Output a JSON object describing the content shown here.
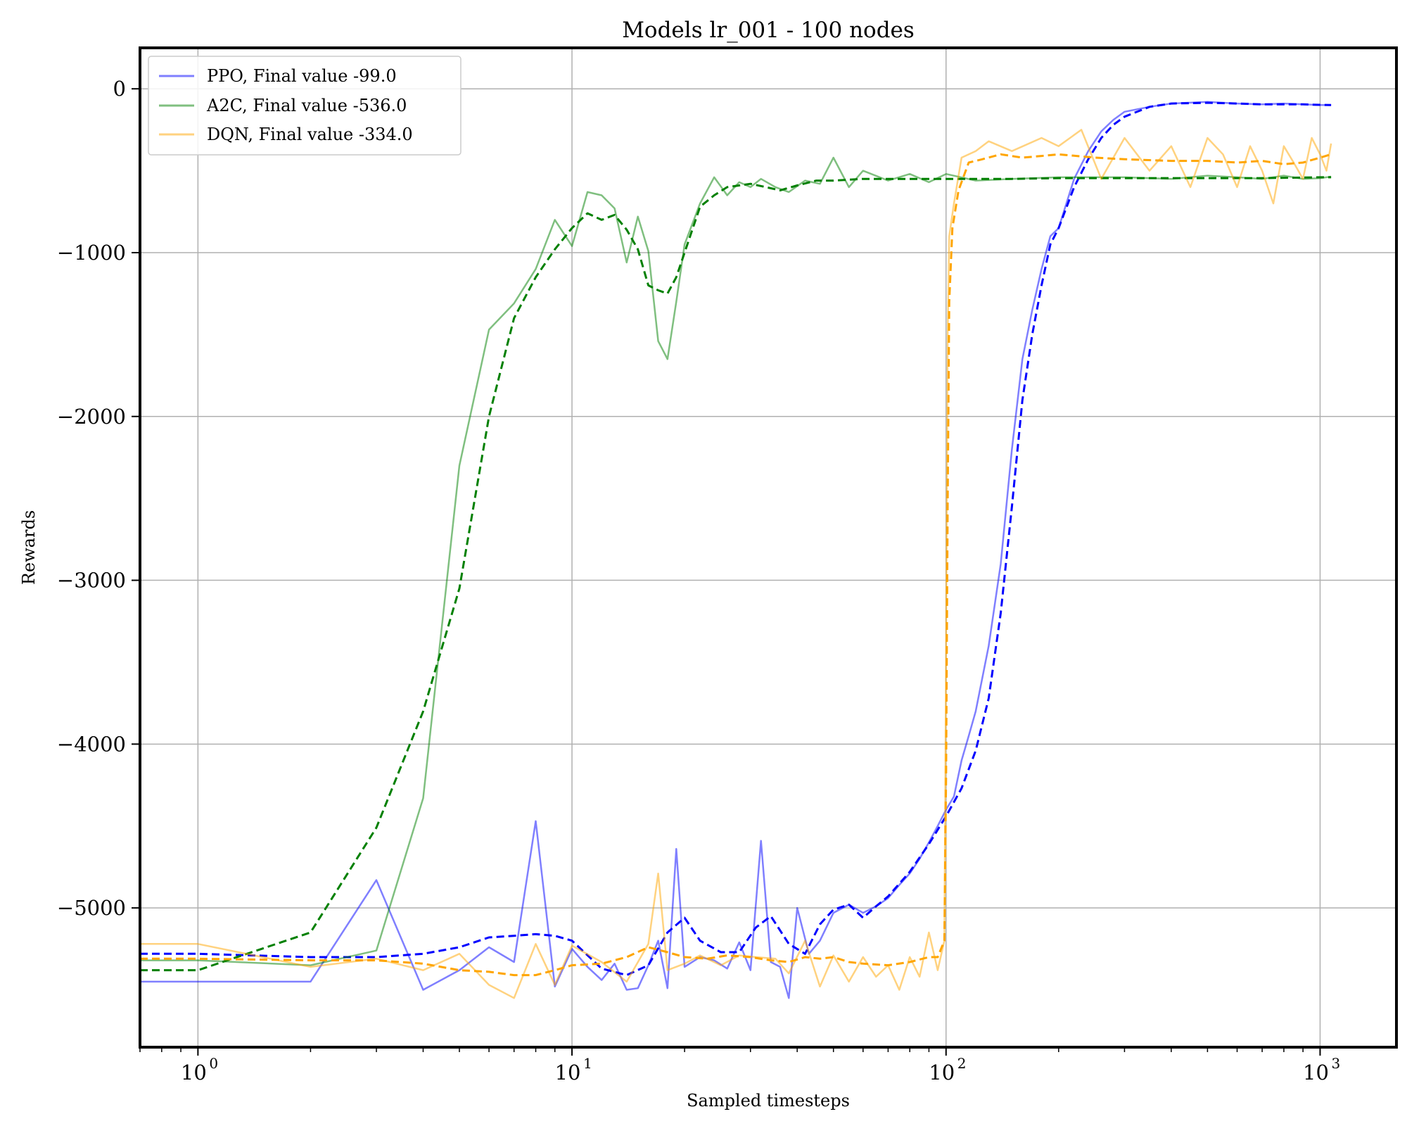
{
  "chart_data": {
    "type": "line",
    "title": "Models lr_001 - 100 nodes",
    "xlabel": "Sampled timesteps",
    "ylabel": "Rewards",
    "xscale": "log",
    "xlim": [
      0.7,
      1600
    ],
    "ylim": [
      -5850,
      250
    ],
    "x_ticks": [
      {
        "value": 1,
        "base": "10",
        "exp": "0"
      },
      {
        "value": 10,
        "base": "10",
        "exp": "1"
      },
      {
        "value": 100,
        "base": "10",
        "exp": "2"
      },
      {
        "value": 1000,
        "base": "10",
        "exp": "3"
      }
    ],
    "y_ticks": [
      {
        "value": 0,
        "label": "0"
      },
      {
        "value": -1000,
        "label": "−1000"
      },
      {
        "value": -2000,
        "label": "−2000"
      },
      {
        "value": -3000,
        "label": "−3000"
      },
      {
        "value": -4000,
        "label": "−4000"
      },
      {
        "value": -5000,
        "label": "−5000"
      }
    ],
    "grid": true,
    "legend_position": "upper-left",
    "series": [
      {
        "name": "PPO, Final value -99.0",
        "color": "#0000ff",
        "x": [
          0,
          1,
          2,
          3,
          4,
          5,
          6,
          7,
          8,
          9,
          10,
          11,
          12,
          13,
          14,
          15,
          16,
          17,
          18,
          19,
          20,
          22,
          24,
          26,
          28,
          30,
          32,
          34,
          36,
          38,
          40,
          43,
          46,
          50,
          55,
          60,
          65,
          70,
          75,
          80,
          85,
          90,
          95,
          100,
          105,
          110,
          115,
          120,
          130,
          140,
          150,
          160,
          170,
          180,
          190,
          200,
          220,
          240,
          260,
          280,
          300,
          350,
          400,
          500,
          600,
          700,
          800,
          900,
          1000,
          1070
        ],
        "values": [
          -5450,
          -5450,
          -5450,
          -4830,
          -5500,
          -5380,
          -5240,
          -5330,
          -4470,
          -5480,
          -5250,
          -5360,
          -5440,
          -5340,
          -5500,
          -5490,
          -5350,
          -5200,
          -5490,
          -4640,
          -5360,
          -5300,
          -5320,
          -5370,
          -5210,
          -5380,
          -4590,
          -5330,
          -5360,
          -5550,
          -5000,
          -5280,
          -5200,
          -5030,
          -4980,
          -5030,
          -4990,
          -4940,
          -4860,
          -4790,
          -4700,
          -4600,
          -4500,
          -4400,
          -4320,
          -4100,
          -3950,
          -3800,
          -3400,
          -2900,
          -2200,
          -1650,
          -1350,
          -1100,
          -900,
          -850,
          -550,
          -380,
          -260,
          -190,
          -140,
          -110,
          -90,
          -80,
          -90,
          -95,
          -90,
          -95,
          -99,
          -99
        ]
      },
      {
        "name": "PPO smoothed",
        "color": "#0000ff",
        "dashed": true,
        "x": [
          0.7,
          1,
          2,
          3,
          4,
          5,
          6,
          7,
          8,
          9,
          10,
          12,
          14,
          16,
          18,
          20,
          22,
          25,
          28,
          31,
          34,
          38,
          42,
          46,
          50,
          55,
          60,
          65,
          70,
          80,
          90,
          100,
          110,
          120,
          130,
          140,
          150,
          160,
          170,
          180,
          190,
          200,
          220,
          240,
          260,
          280,
          300,
          350,
          400,
          500,
          600,
          700,
          800,
          900,
          1000,
          1070
        ],
        "values": [
          -5280,
          -5280,
          -5300,
          -5300,
          -5280,
          -5240,
          -5180,
          -5170,
          -5160,
          -5170,
          -5200,
          -5370,
          -5410,
          -5350,
          -5150,
          -5060,
          -5200,
          -5270,
          -5270,
          -5120,
          -5050,
          -5220,
          -5280,
          -5100,
          -5010,
          -4980,
          -5060,
          -4990,
          -4930,
          -4780,
          -4610,
          -4440,
          -4270,
          -4040,
          -3720,
          -3200,
          -2550,
          -1900,
          -1500,
          -1200,
          -950,
          -850,
          -600,
          -430,
          -300,
          -220,
          -170,
          -110,
          -90,
          -85,
          -90,
          -95,
          -95,
          -95,
          -98,
          -99
        ]
      },
      {
        "name": "A2C, Final value -536.0",
        "color": "#008000",
        "x": [
          0,
          1,
          2,
          3,
          4,
          5,
          6,
          7,
          8,
          9,
          10,
          11,
          12,
          13,
          14,
          15,
          16,
          17,
          18,
          19,
          20,
          22,
          24,
          26,
          28,
          30,
          32,
          35,
          38,
          42,
          46,
          50,
          55,
          60,
          70,
          80,
          90,
          100,
          120,
          150,
          200,
          300,
          400,
          500,
          600,
          700,
          800,
          900,
          1000,
          1070
        ],
        "values": [
          -5320,
          -5320,
          -5350,
          -5260,
          -4330,
          -2300,
          -1470,
          -1310,
          -1100,
          -800,
          -960,
          -630,
          -650,
          -730,
          -1060,
          -780,
          -990,
          -1540,
          -1650,
          -1300,
          -950,
          -700,
          -540,
          -650,
          -570,
          -600,
          -550,
          -600,
          -630,
          -560,
          -580,
          -420,
          -600,
          -500,
          -560,
          -520,
          -570,
          -520,
          -560,
          -550,
          -540,
          -540,
          -550,
          -530,
          -540,
          -550,
          -530,
          -550,
          -545,
          -536
        ]
      },
      {
        "name": "A2C smoothed",
        "color": "#008000",
        "dashed": true,
        "x": [
          0.7,
          1,
          2,
          3,
          4,
          5,
          6,
          7,
          8,
          9,
          10,
          11,
          12,
          13,
          14,
          15,
          16,
          17,
          18,
          19,
          20,
          22,
          24,
          26,
          28,
          30,
          33,
          36,
          40,
          45,
          50,
          60,
          70,
          80,
          100,
          150,
          200,
          300,
          500,
          700,
          1000,
          1070
        ],
        "values": [
          -5380,
          -5380,
          -5150,
          -4510,
          -3800,
          -3050,
          -2000,
          -1400,
          -1150,
          -980,
          -850,
          -760,
          -800,
          -770,
          -860,
          -980,
          -1200,
          -1230,
          -1250,
          -1150,
          -1000,
          -720,
          -650,
          -600,
          -590,
          -580,
          -600,
          -620,
          -590,
          -560,
          -560,
          -550,
          -550,
          -550,
          -550,
          -550,
          -545,
          -545,
          -545,
          -545,
          -540,
          -540
        ]
      },
      {
        "name": "DQN, Final value -334.0",
        "color": "#ffa500",
        "x": [
          0,
          1,
          2,
          3,
          4,
          5,
          6,
          7,
          8,
          9,
          10,
          12,
          14,
          16,
          17,
          18,
          20,
          22,
          25,
          28,
          31,
          35,
          38,
          42,
          46,
          50,
          55,
          60,
          65,
          70,
          75,
          80,
          85,
          90,
          95,
          99,
          100,
          101,
          102,
          105,
          110,
          120,
          130,
          150,
          180,
          200,
          230,
          260,
          300,
          350,
          400,
          450,
          500,
          550,
          600,
          650,
          700,
          750,
          800,
          850,
          900,
          950,
          1000,
          1040,
          1070
        ],
        "values": [
          -5220,
          -5220,
          -5360,
          -5310,
          -5380,
          -5280,
          -5470,
          -5550,
          -5220,
          -5470,
          -5230,
          -5330,
          -5450,
          -5220,
          -4790,
          -5380,
          -5340,
          -5290,
          -5350,
          -5290,
          -5300,
          -5310,
          -5400,
          -5200,
          -5480,
          -5290,
          -5450,
          -5300,
          -5420,
          -5350,
          -5500,
          -5300,
          -5420,
          -5150,
          -5380,
          -5200,
          -3400,
          -1500,
          -900,
          -700,
          -420,
          -380,
          -320,
          -380,
          -300,
          -350,
          -250,
          -550,
          -300,
          -500,
          -350,
          -600,
          -300,
          -400,
          -600,
          -350,
          -500,
          -700,
          -350,
          -450,
          -550,
          -300,
          -400,
          -500,
          -334
        ]
      },
      {
        "name": "DQN smoothed",
        "color": "#ffa500",
        "dashed": true,
        "x": [
          0.7,
          1,
          2,
          3,
          4,
          5,
          6,
          7,
          8,
          9,
          10,
          12,
          14,
          16,
          18,
          20,
          23,
          26,
          30,
          34,
          38,
          42,
          46,
          50,
          55,
          60,
          70,
          80,
          90,
          95,
          99,
          100,
          101,
          102,
          104,
          108,
          115,
          125,
          140,
          160,
          180,
          200,
          250,
          300,
          400,
          500,
          600,
          700,
          800,
          900,
          1000,
          1070
        ],
        "values": [
          -5310,
          -5310,
          -5320,
          -5320,
          -5340,
          -5380,
          -5390,
          -5410,
          -5410,
          -5380,
          -5350,
          -5340,
          -5300,
          -5240,
          -5270,
          -5300,
          -5310,
          -5290,
          -5300,
          -5320,
          -5330,
          -5300,
          -5310,
          -5300,
          -5330,
          -5340,
          -5350,
          -5330,
          -5300,
          -5300,
          -5200,
          -4200,
          -2500,
          -1300,
          -850,
          -620,
          -450,
          -430,
          -400,
          -420,
          -410,
          -400,
          -420,
          -430,
          -440,
          -440,
          -450,
          -440,
          -460,
          -450,
          -420,
          -400
        ]
      }
    ]
  }
}
